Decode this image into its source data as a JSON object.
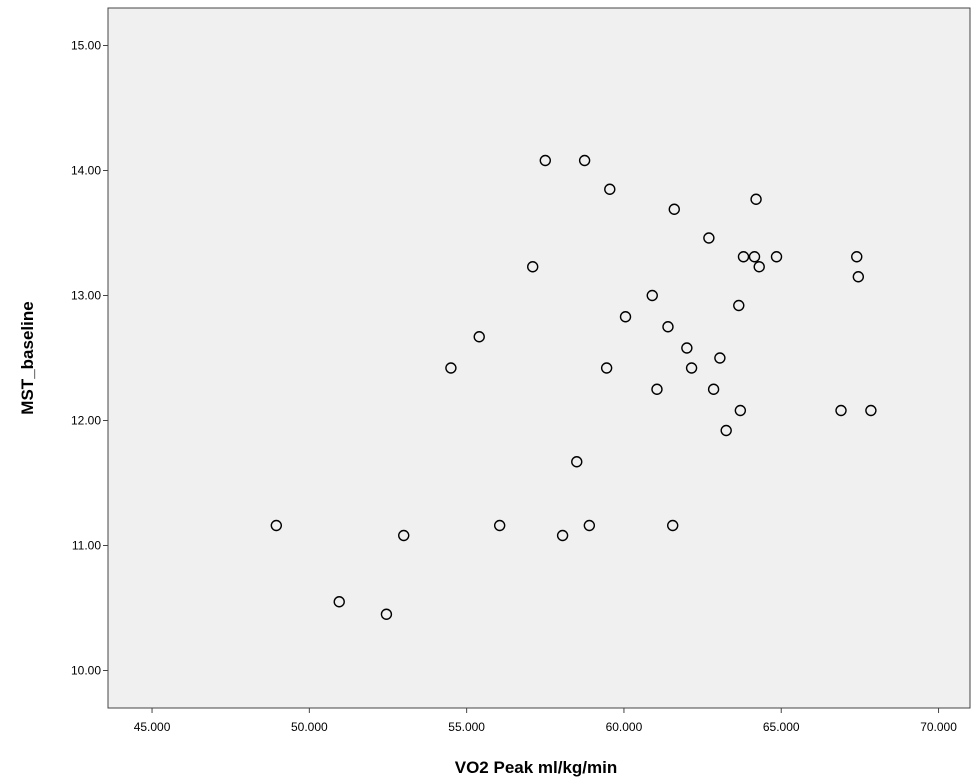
{
  "chart_data": {
    "type": "scatter",
    "xlabel": "VO2 Peak ml/kg/min",
    "ylabel": "MST_baseline",
    "xlim": [
      43.6,
      71.0
    ],
    "ylim": [
      9.7,
      15.3
    ],
    "x_ticks": [
      "45.000",
      "50.000",
      "55.000",
      "60.000",
      "65.000",
      "70.000"
    ],
    "x_tick_values": [
      45,
      50,
      55,
      60,
      65,
      70
    ],
    "y_ticks": [
      "10.00",
      "11.00",
      "12.00",
      "13.00",
      "14.00",
      "15.00"
    ],
    "y_tick_values": [
      10,
      11,
      12,
      13,
      14,
      15
    ],
    "grid": false,
    "plot_background": "#f0f0f0",
    "marker": "open-circle",
    "points": [
      {
        "x": 48.95,
        "y": 11.16
      },
      {
        "x": 50.95,
        "y": 10.55
      },
      {
        "x": 52.45,
        "y": 10.45
      },
      {
        "x": 53.0,
        "y": 11.08
      },
      {
        "x": 54.5,
        "y": 12.42
      },
      {
        "x": 55.4,
        "y": 12.67
      },
      {
        "x": 56.05,
        "y": 11.16
      },
      {
        "x": 57.1,
        "y": 13.23
      },
      {
        "x": 57.5,
        "y": 14.08
      },
      {
        "x": 58.05,
        "y": 11.08
      },
      {
        "x": 58.5,
        "y": 11.67
      },
      {
        "x": 58.75,
        "y": 14.08
      },
      {
        "x": 58.9,
        "y": 11.16
      },
      {
        "x": 59.45,
        "y": 12.42
      },
      {
        "x": 59.55,
        "y": 13.85
      },
      {
        "x": 60.05,
        "y": 12.83
      },
      {
        "x": 60.9,
        "y": 13.0
      },
      {
        "x": 61.05,
        "y": 12.25
      },
      {
        "x": 61.4,
        "y": 12.75
      },
      {
        "x": 61.55,
        "y": 11.16
      },
      {
        "x": 61.6,
        "y": 13.69
      },
      {
        "x": 62.0,
        "y": 12.58
      },
      {
        "x": 62.15,
        "y": 12.42
      },
      {
        "x": 62.7,
        "y": 13.46
      },
      {
        "x": 62.85,
        "y": 12.25
      },
      {
        "x": 63.05,
        "y": 12.5
      },
      {
        "x": 63.25,
        "y": 11.92
      },
      {
        "x": 63.65,
        "y": 12.92
      },
      {
        "x": 63.7,
        "y": 12.08
      },
      {
        "x": 63.8,
        "y": 13.31
      },
      {
        "x": 64.15,
        "y": 13.31
      },
      {
        "x": 64.2,
        "y": 13.77
      },
      {
        "x": 64.3,
        "y": 13.23
      },
      {
        "x": 64.85,
        "y": 13.31
      },
      {
        "x": 66.9,
        "y": 12.08
      },
      {
        "x": 67.4,
        "y": 13.31
      },
      {
        "x": 67.45,
        "y": 13.15
      },
      {
        "x": 67.85,
        "y": 12.08
      }
    ]
  }
}
